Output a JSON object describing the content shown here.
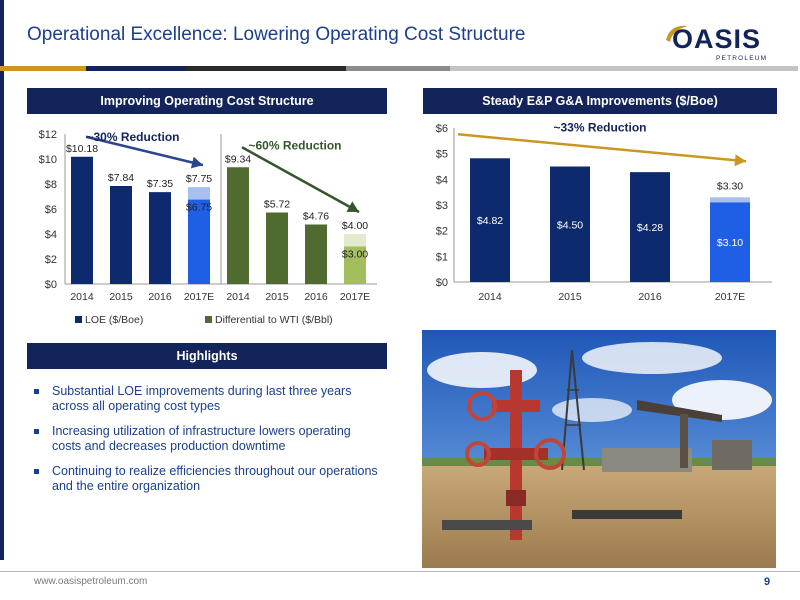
{
  "page": {
    "title": "Operational Excellence: Lowering Operating Cost Structure",
    "logo_main": "OASIS",
    "logo_sub": "PETROLEUM",
    "footer_url": "www.oasispetroleum.com",
    "page_number": "9"
  },
  "colors": {
    "navy": "#13245b",
    "loe_bar": "#0e2a6e",
    "loe_estimate": "#1f5fe6",
    "loe_estimate_light": "#a8c0f0",
    "wti_bar": "#4f6b2f",
    "wti_estimate": "#a3be5c",
    "wti_estimate_light": "#e3ebcf",
    "arrow_blue": "#2b4590",
    "arrow_green": "#35552d",
    "arrow_gold": "#c99722"
  },
  "left_panel": {
    "header": "Improving Operating Cost Structure"
  },
  "right_panel": {
    "header": "Steady E&P G&A Improvements ($/Boe)"
  },
  "highlights": {
    "header": "Highlights",
    "items": [
      "Substantial LOE improvements during last three years across all operating cost types",
      "Increasing utilization of infrastructure lowers operating costs and decreases production downtime",
      "Continuing to realize efficiencies throughout our operations and the entire organization"
    ]
  },
  "chart_data": [
    {
      "type": "bar",
      "ylim": [
        0,
        12
      ],
      "y_ticks": [
        "$0",
        "$2",
        "$4",
        "$6",
        "$8",
        "$10",
        "$12"
      ],
      "groups": [
        {
          "name": "LOE ($/Boe)",
          "categories": [
            "2014",
            "2015",
            "2016",
            "2017E"
          ],
          "values": [
            10.18,
            7.84,
            7.35,
            7.75
          ],
          "labels": [
            "$10.18",
            "$7.84",
            "$7.35",
            "$7.75"
          ],
          "estimate_low_value": 6.75,
          "estimate_low_label": "$6.75",
          "annotation": "~30% Reduction"
        },
        {
          "name": "Differential to WTI ($/Bbl)",
          "categories": [
            "2014",
            "2015",
            "2016",
            "2017E"
          ],
          "values": [
            9.34,
            5.72,
            4.76,
            4.0
          ],
          "labels": [
            "$9.34",
            "$5.72",
            "$4.76",
            "$4.00"
          ],
          "estimate_low_value": 3.0,
          "estimate_low_label": "$3.00",
          "annotation": "~60% Reduction"
        }
      ],
      "legend": [
        "LOE ($/Boe)",
        "Differential to WTI ($/Bbl)"
      ],
      "legend_position": "bottom"
    },
    {
      "type": "bar",
      "ylim": [
        0,
        6
      ],
      "y_ticks": [
        "$0",
        "$1",
        "$2",
        "$3",
        "$4",
        "$5",
        "$6"
      ],
      "categories": [
        "2014",
        "2015",
        "2016",
        "2017E"
      ],
      "values": [
        4.82,
        4.5,
        4.28,
        3.3
      ],
      "labels": [
        "$4.82",
        "$4.50",
        "$4.28",
        "$3.30"
      ],
      "estimate_low_value": 3.1,
      "estimate_low_label": "$3.10",
      "annotation": "~33% Reduction"
    }
  ]
}
